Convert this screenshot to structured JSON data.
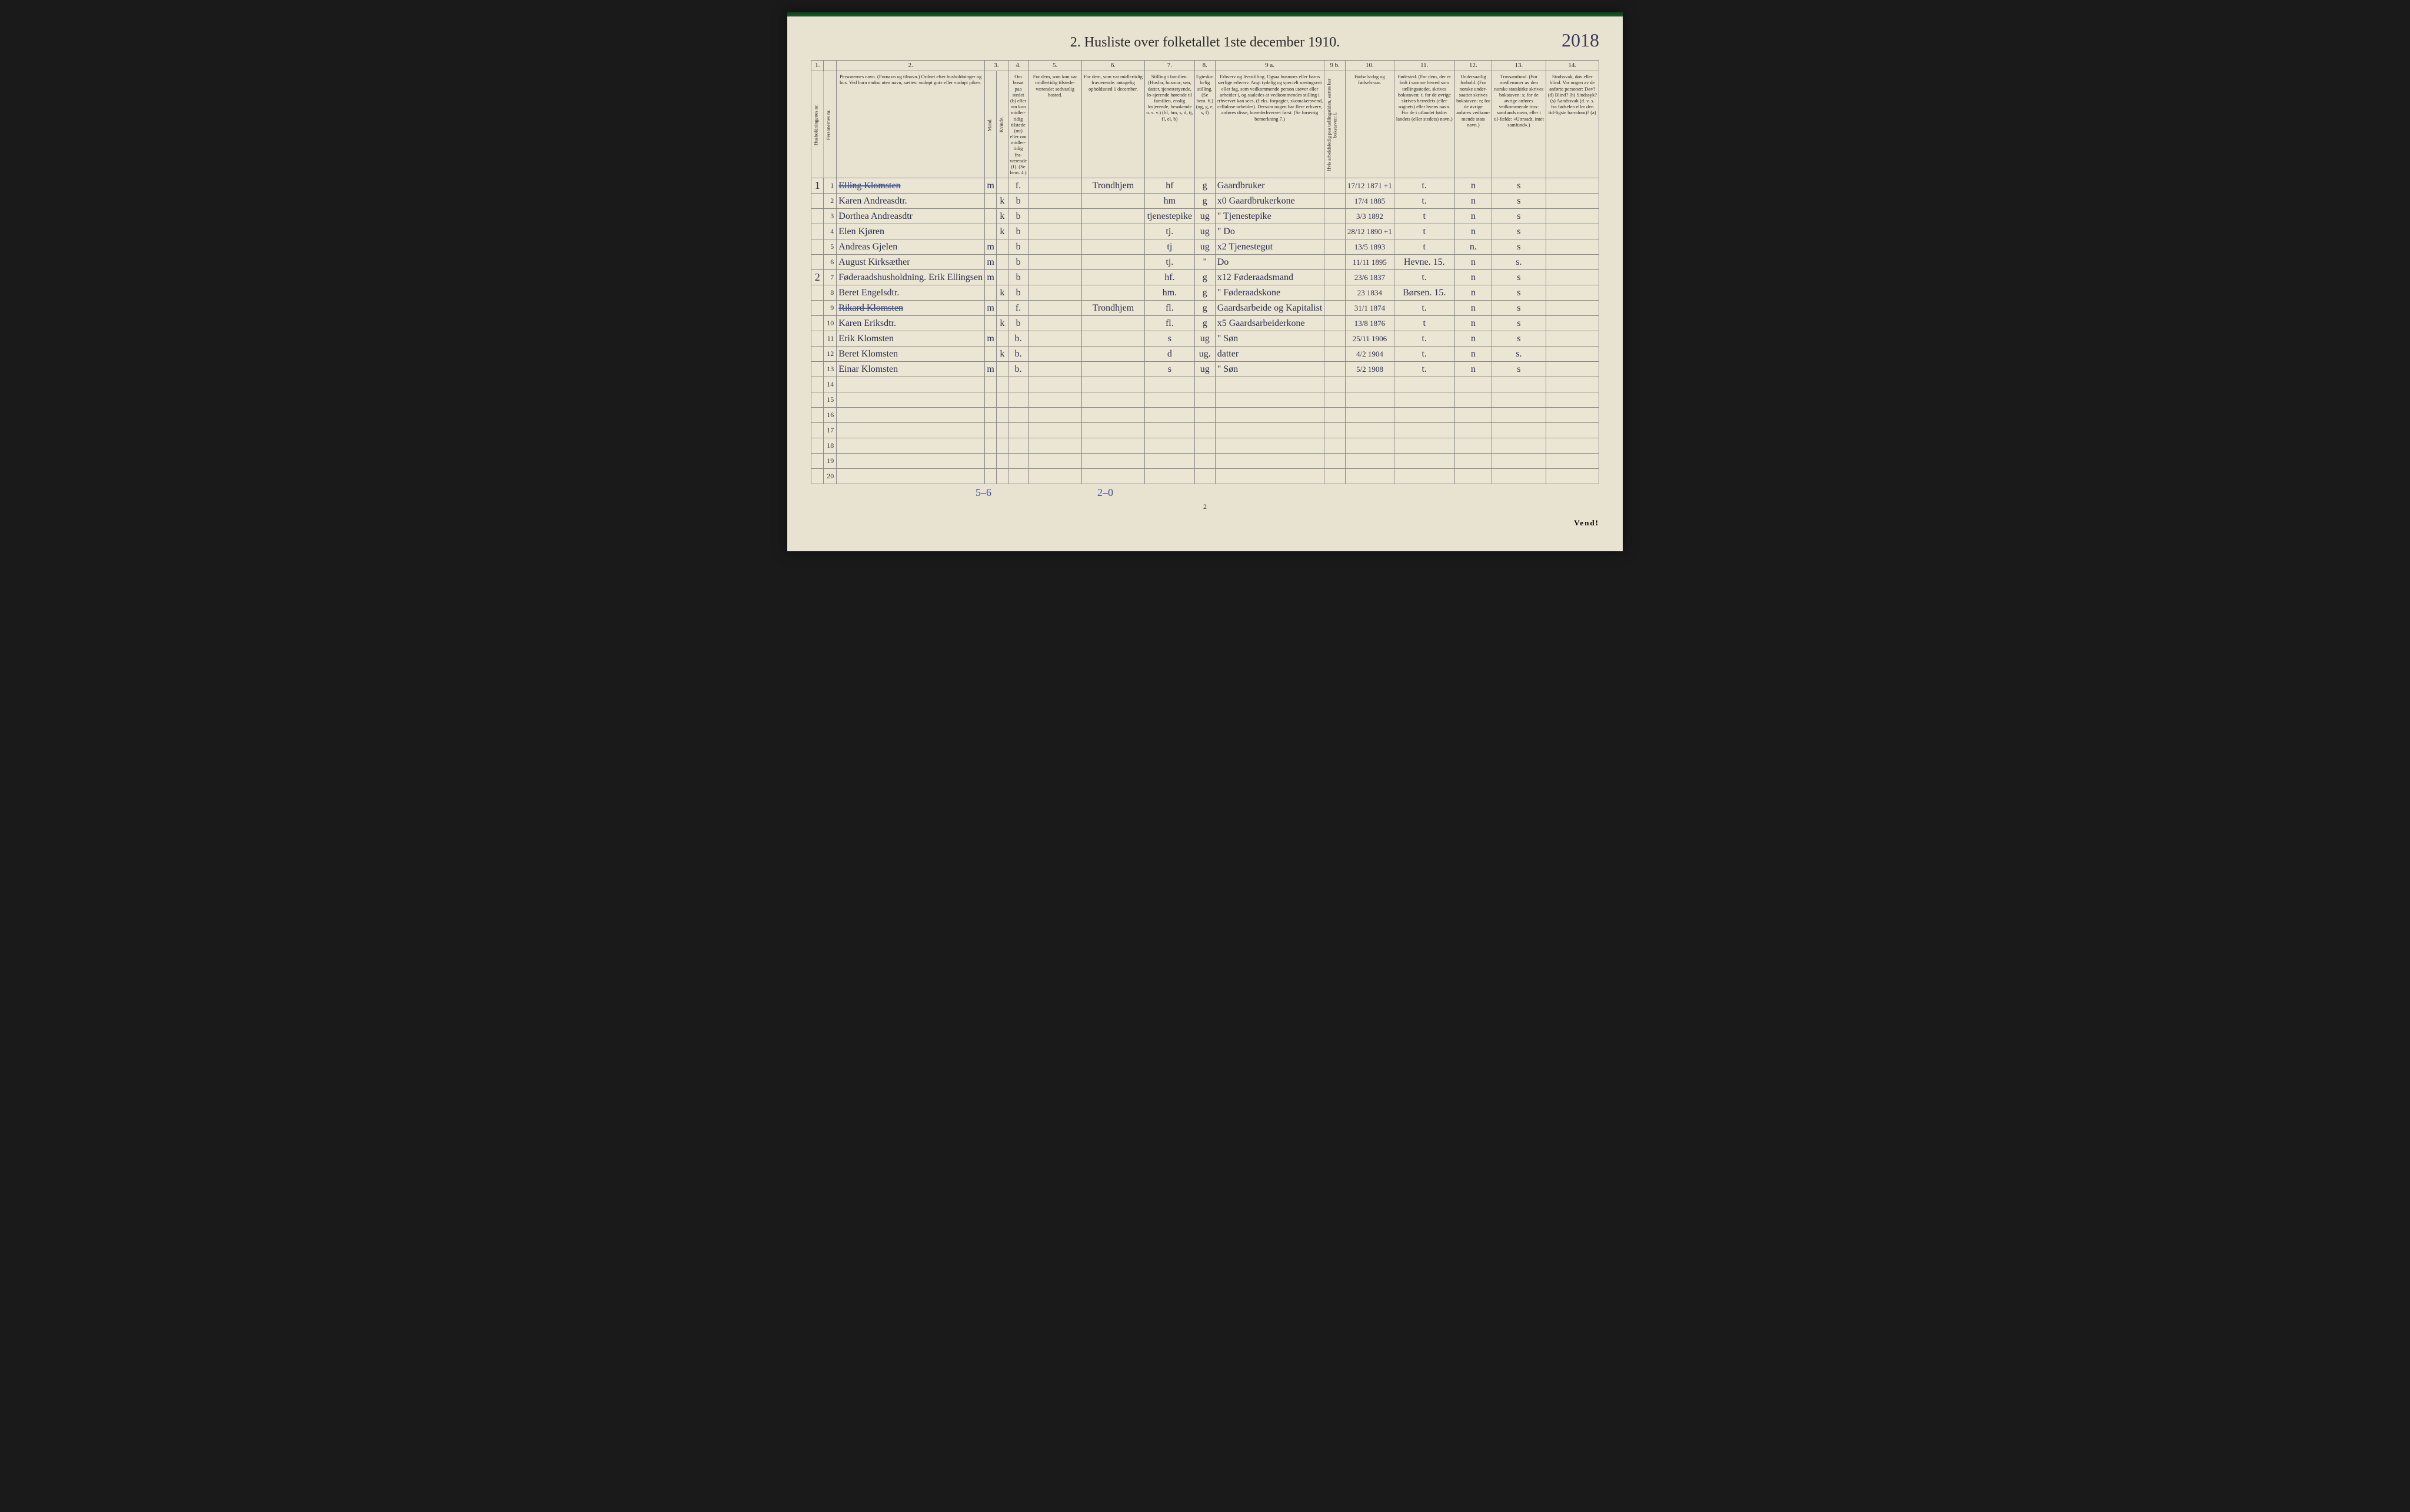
{
  "document": {
    "title": "2.  Husliste over folketallet 1ste december 1910.",
    "handwritten_page_ref": "2018",
    "printed_page_number": "2",
    "turn_instruction": "Vend!"
  },
  "column_numbers": [
    "1.",
    "",
    "2.",
    "3.",
    "",
    "4.",
    "5.",
    "6.",
    "7.",
    "8.",
    "9 a.",
    "9 b.",
    "10.",
    "11.",
    "12.",
    "13.",
    "14."
  ],
  "column_headers": {
    "c1": "Husholdningenes nr.",
    "c1b": "Personernes nr.",
    "c2": "Personernes navn.\n(Fornavn og tilnavn.)\nOrdnet efter husholdninger og hus.\nVed barn endnu uten navn, sættes: «udøpt gut» eller «udøpt pike».",
    "c3": "Kjøn.",
    "c3m": "Mand.",
    "c3k": "Kvinde.",
    "c4": "Om bosat paa stedet (b) eller om kun midler-tidig tilstede (mt) eller om midler-tidig fra-værende (f). (Se bem. 4.)",
    "c5": "For dem, som kun var midlertidig tilstede-værende:\nsedvanlig bosted.",
    "c6": "For dem, som var midlertidig fraværende:\nantagelig opholdssted 1 december.",
    "c7": "Stilling i familien.\n(Husfar, husmor, søn, datter, tjenestetyende, lo-sjerende hørende til familien, enslig losjerende, besøkende o. s. v.)\n(hf, hm, s, d, tj, fl, el, b)",
    "c8": "Egteska-belig stilling.\n(Se bem. 6.)\n(ug, g, e, s, f)",
    "c9a": "Erhverv og livsstilling.\nOgsaa husmors eller barns særlige erhverv. Angi tydelig og specielt næringsvei eller fag, som vedkommende person utøver eller arbeider i, og saaledes at vedkommendes stilling i erhvervet kan sees, (f.eks. forpagter, skomakersvend, cellulose-arbeider). Dersom nogen har flere erhverv, anføres disse, hovederhvervet først.\n(Se forøvrig bemerkning 7.)",
    "c9b": "Hvis arbeidsledig paa tællingstiden, sættes her bokstaven: l.",
    "c10": "Fødsels-dag og fødsels-aar.",
    "c11": "Fødested.\n(For dem, der er født i samme herred som tællingsstedet, skrives bokstaven: t; for de øvrige skrives herredets (eller sognets) eller byens navn. For de i utlandet fødte: landets (eller stedets) navn.)",
    "c12": "Undersaatlig forhold.\n(For norske under-saatter skrives bokstaven: n; for de øvrige anføres vedkom-mende stats navn.)",
    "c13": "Trossamfund.\n(For medlemmer av den norske statskirke skrives bokstaven: s; for de øvrige anføres vedkommende tros-samfunds navn, eller i til-fælde: «Uttraadt, intet samfund».)",
    "c14": "Sindssvak, døv eller blind.\nVar nogen av de anførte personer:\nDøv? (d)\nBlind? (b)\nSindssyk? (s)\nAandssvak (d. v. s. fra fødselen eller den tid-ligste barndom)? (a)"
  },
  "rows": [
    {
      "hh": "1",
      "n": "1",
      "name": "Elling Klomsten",
      "struck": true,
      "m": "m",
      "k": "",
      "bosat": "f.",
      "tilst": "",
      "frav": "Trondhjem",
      "stilling": "hf",
      "egt": "g",
      "erhv": "Gaardbruker",
      "arb": "",
      "fdato": "17/12 1871 +1",
      "fsted": "t.",
      "und": "n",
      "tros": "s",
      "sinds": ""
    },
    {
      "hh": "",
      "n": "2",
      "name": "Karen Andreasdtr.",
      "m": "",
      "k": "k",
      "bosat": "b",
      "tilst": "",
      "frav": "",
      "stilling": "hm",
      "egt": "g",
      "erhv": "x0 Gaardbrukerkone",
      "arb": "",
      "fdato": "17/4 1885",
      "fsted": "t.",
      "und": "n",
      "tros": "s",
      "sinds": ""
    },
    {
      "hh": "",
      "n": "3",
      "name": "Dorthea Andreasdtr",
      "m": "",
      "k": "k",
      "bosat": "b",
      "tilst": "",
      "frav": "",
      "stilling": "tjenestepike",
      "egt": "ug",
      "erhv": "\" Tjenestepike",
      "arb": "",
      "fdato": "3/3 1892",
      "fsted": "t",
      "und": "n",
      "tros": "s",
      "sinds": ""
    },
    {
      "hh": "",
      "n": "4",
      "name": "Elen Kjøren",
      "m": "",
      "k": "k",
      "bosat": "b",
      "tilst": "",
      "frav": "",
      "stilling": "tj.",
      "egt": "ug",
      "erhv": "\" Do",
      "arb": "",
      "fdato": "28/12 1890 +1",
      "fsted": "t",
      "und": "n",
      "tros": "s",
      "sinds": ""
    },
    {
      "hh": "",
      "n": "5",
      "name": "Andreas Gjelen",
      "m": "m",
      "k": "",
      "bosat": "b",
      "tilst": "",
      "frav": "",
      "stilling": "tj",
      "egt": "ug",
      "erhv": "x2 Tjenestegut",
      "arb": "",
      "fdato": "13/5 1893",
      "fsted": "t",
      "und": "n.",
      "tros": "s",
      "sinds": ""
    },
    {
      "hh": "",
      "n": "6",
      "name": "August Kirksæther",
      "m": "m",
      "k": "",
      "bosat": "b",
      "tilst": "",
      "frav": "",
      "stilling": "tj.",
      "egt": "\"",
      "erhv": "Do",
      "arb": "",
      "fdato": "11/11 1895",
      "fsted": "Hevne. 15.",
      "und": "n",
      "tros": "s.",
      "sinds": ""
    },
    {
      "hh": "2",
      "n": "7",
      "name": "Føderaadshusholdning. Erik Ellingsen",
      "m": "m",
      "k": "",
      "bosat": "b",
      "tilst": "",
      "frav": "",
      "stilling": "hf.",
      "egt": "g",
      "erhv": "x12 Føderaadsmand",
      "arb": "",
      "fdato": "23/6 1837",
      "fsted": "t.",
      "und": "n",
      "tros": "s",
      "sinds": ""
    },
    {
      "hh": "",
      "n": "8",
      "name": "Beret Engelsdtr.",
      "m": "",
      "k": "k",
      "bosat": "b",
      "tilst": "",
      "frav": "",
      "stilling": "hm.",
      "egt": "g",
      "erhv": "\" Føderaadskone",
      "arb": "",
      "fdato": "23 1834",
      "fsted": "Børsen. 15.",
      "und": "n",
      "tros": "s",
      "sinds": ""
    },
    {
      "hh": "",
      "n": "9",
      "name": "Rikard Klomsten",
      "struck": true,
      "m": "m",
      "k": "",
      "bosat": "f.",
      "tilst": "",
      "frav": "Trondhjem",
      "stilling": "fl.",
      "egt": "g",
      "erhv": "Gaardsarbeide og Kapitalist",
      "arb": "",
      "fdato": "31/1 1874",
      "fsted": "t.",
      "und": "n",
      "tros": "s",
      "sinds": ""
    },
    {
      "hh": "",
      "n": "10",
      "name": "Karen Eriksdtr.",
      "m": "",
      "k": "k",
      "bosat": "b",
      "tilst": "",
      "frav": "",
      "stilling": "fl.",
      "egt": "g",
      "erhv": "x5 Gaardsarbeiderkone",
      "arb": "",
      "fdato": "13/8 1876",
      "fsted": "t",
      "und": "n",
      "tros": "s",
      "sinds": ""
    },
    {
      "hh": "",
      "n": "11",
      "name": "Erik Klomsten",
      "m": "m",
      "k": "",
      "bosat": "b.",
      "tilst": "",
      "frav": "",
      "stilling": "s",
      "egt": "ug",
      "erhv": "\" Søn",
      "arb": "",
      "fdato": "25/11 1906",
      "fsted": "t.",
      "und": "n",
      "tros": "s",
      "sinds": ""
    },
    {
      "hh": "",
      "n": "12",
      "name": "Beret Klomsten",
      "m": "",
      "k": "k",
      "bosat": "b.",
      "tilst": "",
      "frav": "",
      "stilling": "d",
      "egt": "ug.",
      "erhv": "datter",
      "arb": "",
      "fdato": "4/2 1904",
      "fsted": "t.",
      "und": "n",
      "tros": "s.",
      "sinds": ""
    },
    {
      "hh": "",
      "n": "13",
      "name": "Einar Klomsten",
      "m": "m",
      "k": "",
      "bosat": "b.",
      "tilst": "",
      "frav": "",
      "stilling": "s",
      "egt": "ug",
      "erhv": "\" Søn",
      "arb": "",
      "fdato": "5/2 1908",
      "fsted": "t.",
      "und": "n",
      "tros": "s",
      "sinds": ""
    },
    {
      "hh": "",
      "n": "14",
      "name": "",
      "m": "",
      "k": "",
      "bosat": "",
      "tilst": "",
      "frav": "",
      "stilling": "",
      "egt": "",
      "erhv": "",
      "arb": "",
      "fdato": "",
      "fsted": "",
      "und": "",
      "tros": "",
      "sinds": ""
    },
    {
      "hh": "",
      "n": "15",
      "name": "",
      "m": "",
      "k": "",
      "bosat": "",
      "tilst": "",
      "frav": "",
      "stilling": "",
      "egt": "",
      "erhv": "",
      "arb": "",
      "fdato": "",
      "fsted": "",
      "und": "",
      "tros": "",
      "sinds": ""
    },
    {
      "hh": "",
      "n": "16",
      "name": "",
      "m": "",
      "k": "",
      "bosat": "",
      "tilst": "",
      "frav": "",
      "stilling": "",
      "egt": "",
      "erhv": "",
      "arb": "",
      "fdato": "",
      "fsted": "",
      "und": "",
      "tros": "",
      "sinds": ""
    },
    {
      "hh": "",
      "n": "17",
      "name": "",
      "m": "",
      "k": "",
      "bosat": "",
      "tilst": "",
      "frav": "",
      "stilling": "",
      "egt": "",
      "erhv": "",
      "arb": "",
      "fdato": "",
      "fsted": "",
      "und": "",
      "tros": "",
      "sinds": ""
    },
    {
      "hh": "",
      "n": "18",
      "name": "",
      "m": "",
      "k": "",
      "bosat": "",
      "tilst": "",
      "frav": "",
      "stilling": "",
      "egt": "",
      "erhv": "",
      "arb": "",
      "fdato": "",
      "fsted": "",
      "und": "",
      "tros": "",
      "sinds": ""
    },
    {
      "hh": "",
      "n": "19",
      "name": "",
      "m": "",
      "k": "",
      "bosat": "",
      "tilst": "",
      "frav": "",
      "stilling": "",
      "egt": "",
      "erhv": "",
      "arb": "",
      "fdato": "",
      "fsted": "",
      "und": "",
      "tros": "",
      "sinds": ""
    },
    {
      "hh": "",
      "n": "20",
      "name": "",
      "m": "",
      "k": "",
      "bosat": "",
      "tilst": "",
      "frav": "",
      "stilling": "",
      "egt": "",
      "erhv": "",
      "arb": "",
      "fdato": "",
      "fsted": "",
      "und": "",
      "tros": "",
      "sinds": ""
    }
  ],
  "footer_notes": {
    "note1": "5–6",
    "note2": "2–0"
  }
}
